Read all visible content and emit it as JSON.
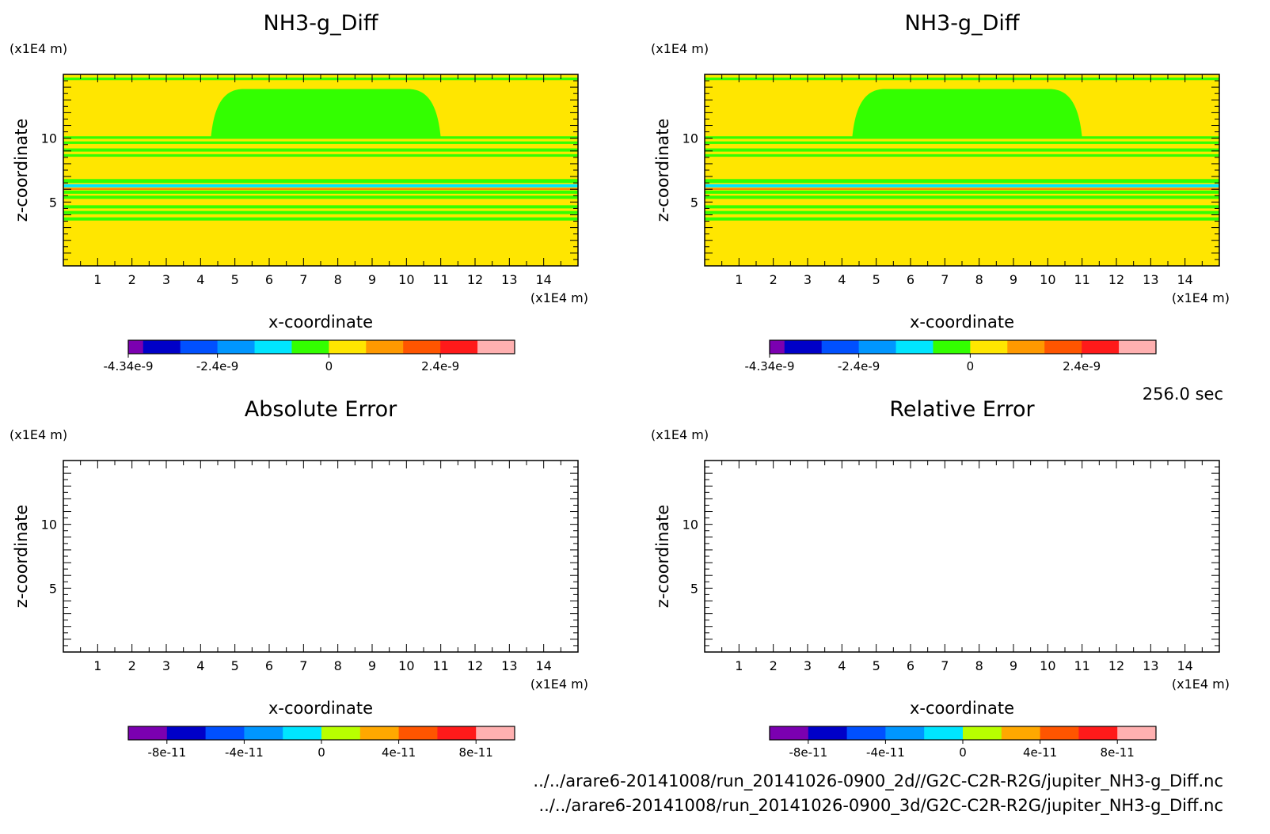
{
  "time_label": "256.0 sec",
  "footer": {
    "line1": "../../arare6-20141008/run_20141026-0900_2d//G2C-C2R-R2G/jupiter_NH3-g_Diff.nc",
    "line2": "../../arare6-20141008/run_20141026-0900_3d/G2C-C2R-R2G/jupiter_NH3-g_Diff.nc"
  },
  "chart_data": [
    {
      "type": "heatmap",
      "title": "NH3-g_Diff",
      "xlabel": "x-coordinate",
      "ylabel": "z-coordinate",
      "x_unit": "(x1E4 m)",
      "y_unit": "(x1E4 m)",
      "xlim": [
        0,
        15
      ],
      "ylim": [
        0,
        15
      ],
      "xticks": [
        "1",
        "2",
        "3",
        "4",
        "5",
        "6",
        "7",
        "8",
        "9",
        "10",
        "11",
        "12",
        "13",
        "14"
      ],
      "yticks": [
        "5",
        "10"
      ],
      "background_color": "#ffe600",
      "field": [
        {
          "kind": "band",
          "z": [
            14.55,
            14.75
          ],
          "color": "#33ff00"
        },
        {
          "kind": "dome",
          "x": [
            4.3,
            11.0
          ],
          "z": [
            10.05,
            13.85
          ],
          "color": "#33ff00"
        },
        {
          "kind": "band",
          "z": [
            9.95,
            10.15
          ],
          "color": "#33ff00"
        },
        {
          "kind": "band",
          "z": [
            9.55,
            9.75
          ],
          "color": "#33ff00"
        },
        {
          "kind": "band",
          "z": [
            8.95,
            9.2
          ],
          "color": "#33ff00"
        },
        {
          "kind": "band",
          "z": [
            8.55,
            8.75
          ],
          "color": "#33ff00"
        },
        {
          "kind": "band",
          "z": [
            6.5,
            6.8
          ],
          "color": "#33ff00"
        },
        {
          "kind": "band",
          "z": [
            6.15,
            6.4
          ],
          "color": "#00e5ff"
        },
        {
          "kind": "band",
          "z": [
            5.95,
            6.1
          ],
          "color": "#ff8800"
        },
        {
          "kind": "band",
          "z": [
            5.65,
            5.9
          ],
          "color": "#33ff00"
        },
        {
          "kind": "band",
          "z": [
            5.25,
            5.5
          ],
          "color": "#33ff00"
        },
        {
          "kind": "band",
          "z": [
            4.5,
            4.75
          ],
          "color": "#33ff00"
        },
        {
          "kind": "band",
          "z": [
            4.05,
            4.3
          ],
          "color": "#33ff00"
        },
        {
          "kind": "band",
          "z": [
            3.55,
            3.8
          ],
          "color": "#33ff00"
        }
      ],
      "colorbar": {
        "colors": [
          "#7b00b0",
          "#0000c8",
          "#0050ff",
          "#0096ff",
          "#00e5ff",
          "#33ff00",
          "#ffe600",
          "#ff9900",
          "#ff5500",
          "#ff1a1a",
          "#ffb0b0"
        ],
        "first_width_fraction": 0.4,
        "ticks": [
          {
            "label": "-4.34e-9",
            "at": 0
          },
          {
            "label": "-2.4e-9",
            "at": 2.4
          },
          {
            "label": "0",
            "at": 5.4
          },
          {
            "label": "2.4e-9",
            "at": 8.4
          }
        ]
      }
    },
    {
      "type": "heatmap",
      "title": "NH3-g_Diff",
      "xlabel": "x-coordinate",
      "ylabel": "z-coordinate",
      "x_unit": "(x1E4 m)",
      "y_unit": "(x1E4 m)",
      "xlim": [
        0,
        15
      ],
      "ylim": [
        0,
        15
      ],
      "xticks": [
        "1",
        "2",
        "3",
        "4",
        "5",
        "6",
        "7",
        "8",
        "9",
        "10",
        "11",
        "12",
        "13",
        "14"
      ],
      "yticks": [
        "5",
        "10"
      ],
      "background_color": "#ffe600",
      "field": [
        {
          "kind": "band",
          "z": [
            14.55,
            14.75
          ],
          "color": "#33ff00"
        },
        {
          "kind": "dome",
          "x": [
            4.3,
            11.0
          ],
          "z": [
            10.05,
            13.85
          ],
          "color": "#33ff00"
        },
        {
          "kind": "band",
          "z": [
            9.95,
            10.15
          ],
          "color": "#33ff00"
        },
        {
          "kind": "band",
          "z": [
            9.55,
            9.75
          ],
          "color": "#33ff00"
        },
        {
          "kind": "band",
          "z": [
            8.95,
            9.2
          ],
          "color": "#33ff00"
        },
        {
          "kind": "band",
          "z": [
            8.55,
            8.75
          ],
          "color": "#33ff00"
        },
        {
          "kind": "band",
          "z": [
            6.5,
            6.8
          ],
          "color": "#33ff00"
        },
        {
          "kind": "band",
          "z": [
            6.15,
            6.4
          ],
          "color": "#00e5ff"
        },
        {
          "kind": "band",
          "z": [
            5.95,
            6.1
          ],
          "color": "#ff8800"
        },
        {
          "kind": "band",
          "z": [
            5.65,
            5.9
          ],
          "color": "#33ff00"
        },
        {
          "kind": "band",
          "z": [
            5.25,
            5.5
          ],
          "color": "#33ff00"
        },
        {
          "kind": "band",
          "z": [
            4.5,
            4.75
          ],
          "color": "#33ff00"
        },
        {
          "kind": "band",
          "z": [
            4.05,
            4.3
          ],
          "color": "#33ff00"
        },
        {
          "kind": "band",
          "z": [
            3.55,
            3.8
          ],
          "color": "#33ff00"
        }
      ],
      "colorbar": {
        "colors": [
          "#7b00b0",
          "#0000c8",
          "#0050ff",
          "#0096ff",
          "#00e5ff",
          "#33ff00",
          "#ffe600",
          "#ff9900",
          "#ff5500",
          "#ff1a1a",
          "#ffb0b0"
        ],
        "first_width_fraction": 0.4,
        "ticks": [
          {
            "label": "-4.34e-9",
            "at": 0
          },
          {
            "label": "-2.4e-9",
            "at": 2.4
          },
          {
            "label": "0",
            "at": 5.4
          },
          {
            "label": "2.4e-9",
            "at": 8.4
          }
        ]
      }
    },
    {
      "type": "heatmap",
      "title": "Absolute Error",
      "xlabel": "x-coordinate",
      "ylabel": "z-coordinate",
      "x_unit": "(x1E4 m)",
      "y_unit": "(x1E4 m)",
      "xlim": [
        0,
        15
      ],
      "ylim": [
        0,
        15
      ],
      "xticks": [
        "1",
        "2",
        "3",
        "4",
        "5",
        "6",
        "7",
        "8",
        "9",
        "10",
        "11",
        "12",
        "13",
        "14"
      ],
      "yticks": [
        "5",
        "10"
      ],
      "background_color": "#ffffff",
      "field": [],
      "colorbar": {
        "colors": [
          "#7b00b0",
          "#0000c8",
          "#0050ff",
          "#0096ff",
          "#00e5ff",
          "#b8ff00",
          "#ffa800",
          "#ff5500",
          "#ff1a1a",
          "#ffb0b0"
        ],
        "first_width_fraction": 1,
        "ticks": [
          {
            "label": "-8e-11",
            "at": 1
          },
          {
            "label": "-4e-11",
            "at": 3
          },
          {
            "label": "0",
            "at": 5
          },
          {
            "label": "4e-11",
            "at": 7
          },
          {
            "label": "8e-11",
            "at": 9
          }
        ]
      }
    },
    {
      "type": "heatmap",
      "title": "Relative Error",
      "xlabel": "x-coordinate",
      "ylabel": "z-coordinate",
      "x_unit": "(x1E4 m)",
      "y_unit": "(x1E4 m)",
      "xlim": [
        0,
        15
      ],
      "ylim": [
        0,
        15
      ],
      "xticks": [
        "1",
        "2",
        "3",
        "4",
        "5",
        "6",
        "7",
        "8",
        "9",
        "10",
        "11",
        "12",
        "13",
        "14"
      ],
      "yticks": [
        "5",
        "10"
      ],
      "background_color": "#ffffff",
      "field": [],
      "colorbar": {
        "colors": [
          "#7b00b0",
          "#0000c8",
          "#0050ff",
          "#0096ff",
          "#00e5ff",
          "#b8ff00",
          "#ffa800",
          "#ff5500",
          "#ff1a1a",
          "#ffb0b0"
        ],
        "first_width_fraction": 1,
        "ticks": [
          {
            "label": "-8e-11",
            "at": 1
          },
          {
            "label": "-4e-11",
            "at": 3
          },
          {
            "label": "0",
            "at": 5
          },
          {
            "label": "4e-11",
            "at": 7
          },
          {
            "label": "8e-11",
            "at": 9
          }
        ]
      }
    }
  ]
}
